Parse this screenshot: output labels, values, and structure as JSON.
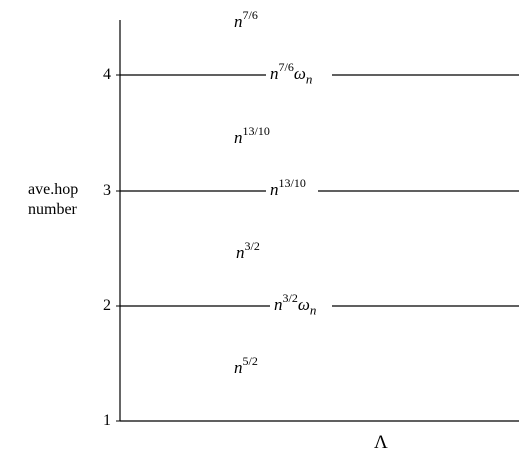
{
  "axes": {
    "y_label": "ave.hop\nnumber",
    "x_label": "Λ",
    "y_ticks": [
      "4",
      "3",
      "2",
      "1"
    ]
  },
  "level_lines": [
    {
      "value": 4,
      "label_base": "n",
      "label_exp": "7/6",
      "label_suffix": "ω",
      "label_sub": "n"
    },
    {
      "value": 3,
      "label_base": "n",
      "label_exp": "13/10",
      "label_suffix": "",
      "label_sub": ""
    },
    {
      "value": 2,
      "label_base": "n",
      "label_exp": "3/2",
      "label_suffix": "ω",
      "label_sub": "n"
    }
  ],
  "region_labels": [
    {
      "between": "above 4",
      "base": "n",
      "exp": "7/6"
    },
    {
      "between": "3-4",
      "base": "n",
      "exp": "13/10"
    },
    {
      "between": "2-3",
      "base": "n",
      "exp": "3/2"
    },
    {
      "between": "1-2",
      "base": "n",
      "exp": "5/2"
    }
  ]
}
